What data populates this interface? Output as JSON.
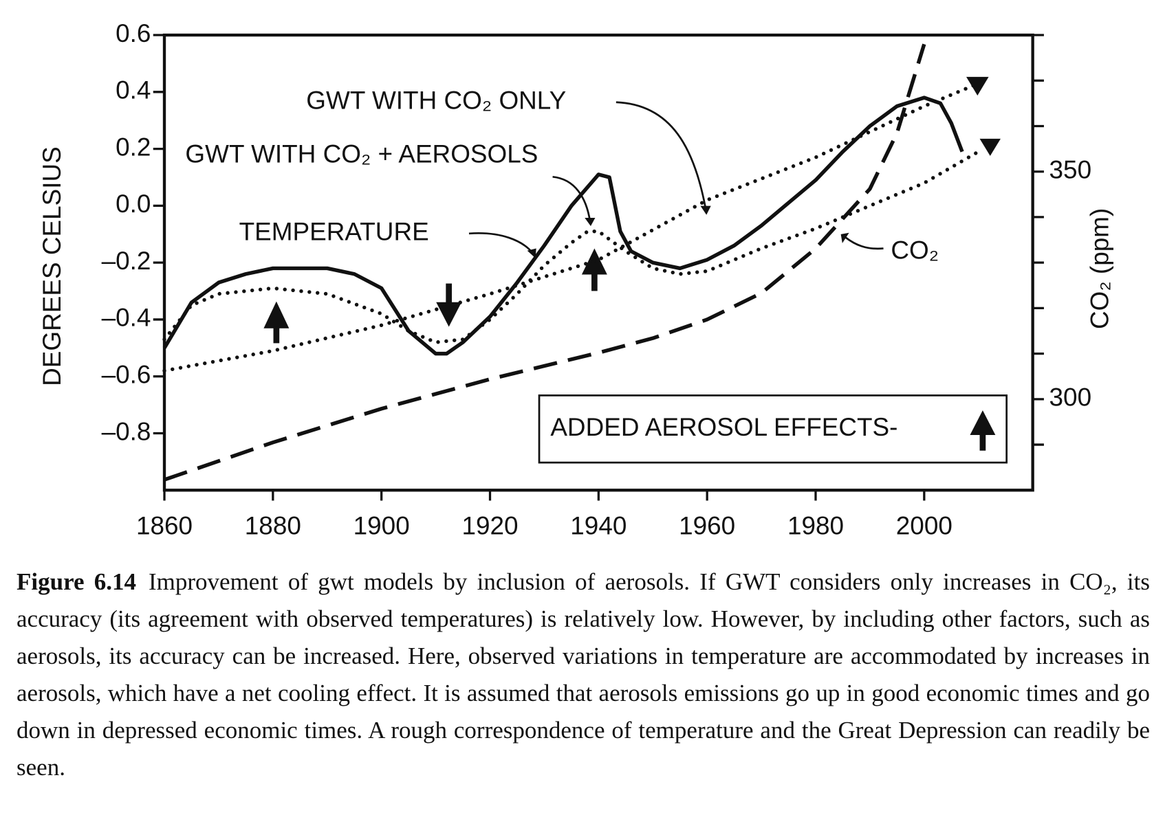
{
  "chart_data": {
    "type": "line",
    "ylabel": "DEGREES CELSIUS",
    "y2label": "CO₂ (ppm)",
    "xlim": [
      1860,
      2020
    ],
    "xticks": [
      1860,
      1880,
      1900,
      1920,
      1940,
      1960,
      1980,
      2000
    ],
    "ylim": [
      -1.0,
      0.6
    ],
    "yticks": [
      0.6,
      0.4,
      0.2,
      {
        "value": 0.0,
        "label": "0.0"
      },
      {
        "value": -0.2,
        "label": "–0.2"
      },
      {
        "value": -0.4,
        "label": "–0.4"
      },
      {
        "value": -0.6,
        "label": "–0.6"
      },
      {
        "value": -0.8,
        "label": "–0.8"
      }
    ],
    "y2lim": [
      280,
      380
    ],
    "y2ticks": [
      {
        "value": 290,
        "label": null
      },
      300,
      {
        "value": 310,
        "label": null
      },
      {
        "value": 320,
        "label": null
      },
      {
        "value": 330,
        "label": null
      },
      {
        "value": 340,
        "label": null
      },
      350,
      {
        "value": 360,
        "label": null
      },
      {
        "value": 370,
        "label": null
      },
      {
        "value": 380,
        "label": null
      }
    ],
    "series": [
      {
        "name": "TEMPERATURE",
        "color": "#111111",
        "style": "solid",
        "x": [
          1860,
          1865,
          1870,
          1875,
          1880,
          1885,
          1890,
          1895,
          1900,
          1905,
          1910,
          1912,
          1915,
          1920,
          1925,
          1930,
          1935,
          1940,
          1942,
          1944,
          1946,
          1950,
          1955,
          1960,
          1965,
          1970,
          1975,
          1980,
          1985,
          1990,
          1995,
          2000,
          2003,
          2005,
          2007
        ],
        "values": [
          -0.5,
          -0.34,
          -0.27,
          -0.24,
          -0.22,
          -0.22,
          -0.22,
          -0.24,
          -0.29,
          -0.44,
          -0.52,
          -0.52,
          -0.48,
          -0.39,
          -0.27,
          -0.14,
          0.0,
          0.11,
          0.1,
          -0.09,
          -0.16,
          -0.2,
          -0.22,
          -0.19,
          -0.14,
          -0.07,
          0.01,
          0.09,
          0.19,
          0.28,
          0.35,
          0.38,
          0.36,
          0.29,
          0.19
        ]
      },
      {
        "name": "GWT WITH CO₂ ONLY",
        "color": "#111111",
        "style": "dotted",
        "x": [
          1860,
          1880,
          1900,
          1920,
          1940,
          1960,
          1980,
          2000,
          2010
        ],
        "values": [
          -0.58,
          -0.51,
          -0.42,
          -0.31,
          -0.19,
          0.02,
          0.17,
          0.35,
          0.43
        ]
      },
      {
        "name": "GWT WITH CO₂ + AEROSOLS",
        "color": "#111111",
        "style": "dotted",
        "x": [
          1860,
          1865,
          1870,
          1880,
          1890,
          1900,
          1905,
          1910,
          1915,
          1920,
          1925,
          1930,
          1935,
          1938,
          1940,
          1945,
          1950,
          1955,
          1960,
          1965,
          1970,
          1980,
          1990,
          2000,
          2010
        ],
        "values": [
          -0.47,
          -0.35,
          -0.31,
          -0.29,
          -0.31,
          -0.38,
          -0.44,
          -0.48,
          -0.47,
          -0.4,
          -0.31,
          -0.21,
          -0.13,
          -0.09,
          -0.09,
          -0.16,
          -0.22,
          -0.24,
          -0.23,
          -0.19,
          -0.15,
          -0.08,
          0.0,
          0.08,
          0.19
        ]
      },
      {
        "name": "CO₂",
        "color": "#111111",
        "style": "dashed",
        "axis": "y2",
        "x": [
          1860,
          1880,
          1900,
          1920,
          1940,
          1950,
          1960,
          1970,
          1980,
          1990,
          1995,
          2000
        ],
        "values": [
          282.3,
          290.5,
          297.9,
          304.4,
          310.2,
          313.4,
          317.5,
          323.3,
          333.1,
          346.2,
          358.5,
          378
        ]
      }
    ],
    "annotations": [
      "ADDED AEROSOL EFFECTS-"
    ]
  },
  "caption": {
    "label": "Figure 6.14",
    "text": "Improvement of gwt models by inclusion of aerosols. If GWT considers only increases in CO₂, its accuracy (its agreement with observed temperatures) is relatively low. However, by including other factors, such as aerosols, its accuracy can be increased. Here, observed variations in temperature are accommodated by increases in aerosols, which have a net cooling effect. It is assumed that aerosols emissions go up in good economic times and go down in depressed economic times. A rough correspondence of temperature and the Great Depression can readily be seen."
  }
}
